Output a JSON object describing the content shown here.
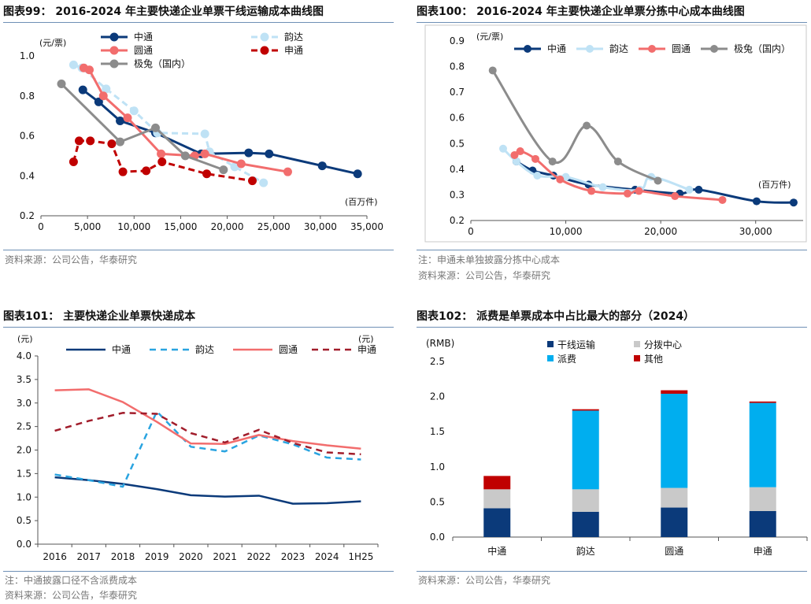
{
  "chart_data": [
    {
      "type": "line",
      "title": "图表99： 2016-2024 年主要快递企业单票干线运输成本曲线图",
      "ylabel": "(元/票)",
      "xlabel": "(百万件)",
      "xlim": [
        0,
        35000
      ],
      "ylim": [
        0.2,
        1.0
      ],
      "xticks": [
        "0",
        "5,000",
        "10,000",
        "15,000",
        "20,000",
        "25,000",
        "30,000",
        "35,000"
      ],
      "yticks": [
        "0.2",
        "0.4",
        "0.6",
        "0.8",
        "1.0"
      ],
      "legend": [
        "中通",
        "韵达",
        "圆通",
        "申通",
        "极兔（国内）"
      ],
      "series": [
        {
          "name": "中通",
          "color": "#0b3a7a",
          "dash": "",
          "marker": "circle",
          "points": [
            [
              4500,
              0.83
            ],
            [
              6200,
              0.77
            ],
            [
              8500,
              0.675
            ],
            [
              12300,
              0.615
            ],
            [
              17200,
              0.51
            ],
            [
              22300,
              0.515
            ],
            [
              24500,
              0.51
            ],
            [
              30200,
              0.45
            ],
            [
              34000,
              0.41
            ]
          ]
        },
        {
          "name": "韵达",
          "color": "#bfe2f5",
          "dash": "8 5",
          "marker": "circle",
          "points": [
            [
              3500,
              0.955
            ],
            [
              4400,
              0.94
            ],
            [
              7000,
              0.835
            ],
            [
              10000,
              0.725
            ],
            [
              12500,
              0.615
            ],
            [
              17600,
              0.61
            ],
            [
              18100,
              0.52
            ],
            [
              20800,
              0.445
            ],
            [
              23900,
              0.365
            ]
          ]
        },
        {
          "name": "圆通",
          "color": "#f26d6d",
          "dash": "",
          "marker": "circle",
          "points": [
            [
              4600,
              0.94
            ],
            [
              5200,
              0.93
            ],
            [
              6700,
              0.8
            ],
            [
              9300,
              0.69
            ],
            [
              12900,
              0.51
            ],
            [
              16500,
              0.5
            ],
            [
              17600,
              0.51
            ],
            [
              21500,
              0.46
            ],
            [
              26500,
              0.42
            ]
          ]
        },
        {
          "name": "申通",
          "color": "#c00000",
          "dash": "8 5",
          "marker": "circle",
          "points": [
            [
              3500,
              0.47
            ],
            [
              4100,
              0.575
            ],
            [
              5300,
              0.575
            ],
            [
              7600,
              0.56
            ],
            [
              8800,
              0.42
            ],
            [
              11300,
              0.425
            ],
            [
              13000,
              0.47
            ],
            [
              17800,
              0.41
            ],
            [
              22700,
              0.375
            ]
          ]
        },
        {
          "name": "极兔（国内）",
          "color": "#8c8c8c",
          "dash": "",
          "marker": "circle",
          "points": [
            [
              2200,
              0.86
            ],
            [
              8500,
              0.57
            ],
            [
              12300,
              0.64
            ],
            [
              15500,
              0.5
            ],
            [
              19600,
              0.43
            ]
          ]
        }
      ]
    },
    {
      "type": "line",
      "title": "图表100： 2016-2024 年主要快递企业单票分拣中心成本曲线图",
      "ylabel": "(元/票)",
      "xlabel": "(百万件)",
      "xlim": [
        0,
        35000
      ],
      "ylim": [
        0.2,
        0.9
      ],
      "xticks": [
        "0",
        "10,000",
        "20,000",
        "30,000"
      ],
      "yticks": [
        "0.2",
        "0.3",
        "0.4",
        "0.5",
        "0.6",
        "0.7",
        "0.8",
        "0.9"
      ],
      "legend": [
        "中通",
        "韵达",
        "圆通",
        "极兔（国内）"
      ],
      "series": [
        {
          "name": "中通",
          "color": "#0b3a7a",
          "dash": "",
          "marker": "circle",
          "points": [
            [
              4800,
              0.43
            ],
            [
              6500,
              0.395
            ],
            [
              8700,
              0.375
            ],
            [
              12400,
              0.34
            ],
            [
              17300,
              0.32
            ],
            [
              22000,
              0.305
            ],
            [
              24000,
              0.32
            ],
            [
              30100,
              0.275
            ],
            [
              34000,
              0.27
            ]
          ]
        },
        {
          "name": "韵达",
          "color": "#bfe2f5",
          "dash": "",
          "marker": "circle",
          "points": [
            [
              3400,
              0.48
            ],
            [
              4800,
              0.43
            ],
            [
              7000,
              0.375
            ],
            [
              10000,
              0.37
            ],
            [
              13900,
              0.33
            ],
            [
              17800,
              0.32
            ],
            [
              19000,
              0.37
            ],
            [
              23000,
              0.32
            ]
          ]
        },
        {
          "name": "圆通",
          "color": "#f26d6d",
          "dash": "",
          "marker": "circle",
          "points": [
            [
              4600,
              0.455
            ],
            [
              5200,
              0.47
            ],
            [
              6800,
              0.44
            ],
            [
              9400,
              0.36
            ],
            [
              12700,
              0.315
            ],
            [
              16500,
              0.305
            ],
            [
              17700,
              0.315
            ],
            [
              21500,
              0.295
            ],
            [
              26500,
              0.28
            ]
          ]
        },
        {
          "name": "极兔（国内）",
          "color": "#8c8c8c",
          "dash": "",
          "marker": "circle",
          "points": [
            [
              2300,
              0.785
            ],
            [
              8600,
              0.43
            ],
            [
              12200,
              0.57
            ],
            [
              15500,
              0.43
            ],
            [
              19700,
              0.355
            ]
          ]
        }
      ],
      "note": "注：申通未单独披露分拣中心成本"
    },
    {
      "type": "line",
      "title": "图表101： 主要快递企业单票快递成本",
      "ylabel": "(元)",
      "ylabel_right": "(元)",
      "ylim": [
        0,
        4.0
      ],
      "yticks": [
        "0.0",
        "0.5",
        "1.0",
        "1.5",
        "2.0",
        "2.5",
        "3.0",
        "3.5",
        "4.0"
      ],
      "categories": [
        "2016",
        "2017",
        "2018",
        "2019",
        "2020",
        "2021",
        "2022",
        "2023",
        "2024",
        "1H25"
      ],
      "legend": [
        "中通",
        "韵达",
        "圆通",
        "申通"
      ],
      "series": [
        {
          "name": "中通",
          "color": "#0b3a7a",
          "dash": "",
          "values": [
            1.42,
            1.36,
            1.28,
            1.17,
            1.04,
            1.01,
            1.03,
            0.86,
            0.87,
            0.91
          ]
        },
        {
          "name": "韵达",
          "color": "#2aa4e0",
          "dash": "8 6",
          "values": [
            1.48,
            1.36,
            1.22,
            2.82,
            2.07,
            1.97,
            2.31,
            2.12,
            1.84,
            1.8
          ]
        },
        {
          "name": "圆通",
          "color": "#f26d6d",
          "dash": "",
          "values": [
            3.27,
            3.29,
            3.02,
            2.6,
            2.14,
            2.13,
            2.32,
            2.19,
            2.1,
            2.03
          ]
        },
        {
          "name": "申通",
          "color": "#a11d2b",
          "dash": "8 6",
          "values": [
            2.41,
            2.62,
            2.79,
            2.77,
            2.36,
            2.16,
            2.43,
            2.15,
            1.95,
            1.91
          ]
        }
      ],
      "note": "注：中通披露口径不含派费成本"
    },
    {
      "type": "bar",
      "stacked": true,
      "title": "图表102： 派费是单票成本中占比最大的部分（2024）",
      "ylabel": "(RMB)",
      "ylim": [
        0,
        2.5
      ],
      "yticks": [
        "0.0",
        "0.5",
        "1.0",
        "1.5",
        "2.0",
        "2.5"
      ],
      "categories": [
        "中通",
        "韵达",
        "圆通",
        "申通"
      ],
      "legend": [
        "干线运输",
        "分拨中心",
        "派费",
        "其他"
      ],
      "series": [
        {
          "name": "干线运输",
          "color": "#0b3a7a",
          "values": [
            0.41,
            0.36,
            0.42,
            0.37
          ]
        },
        {
          "name": "分拨中心",
          "color": "#c9c9c9",
          "values": [
            0.27,
            0.32,
            0.28,
            0.34
          ]
        },
        {
          "name": "派费",
          "color": "#00aeef",
          "values": [
            0.0,
            1.12,
            1.34,
            1.2
          ]
        },
        {
          "name": "其他",
          "color": "#c00000",
          "values": [
            0.19,
            0.02,
            0.05,
            0.02
          ]
        }
      ]
    }
  ],
  "source_label": "资料来源：公司公告，华泰研究"
}
